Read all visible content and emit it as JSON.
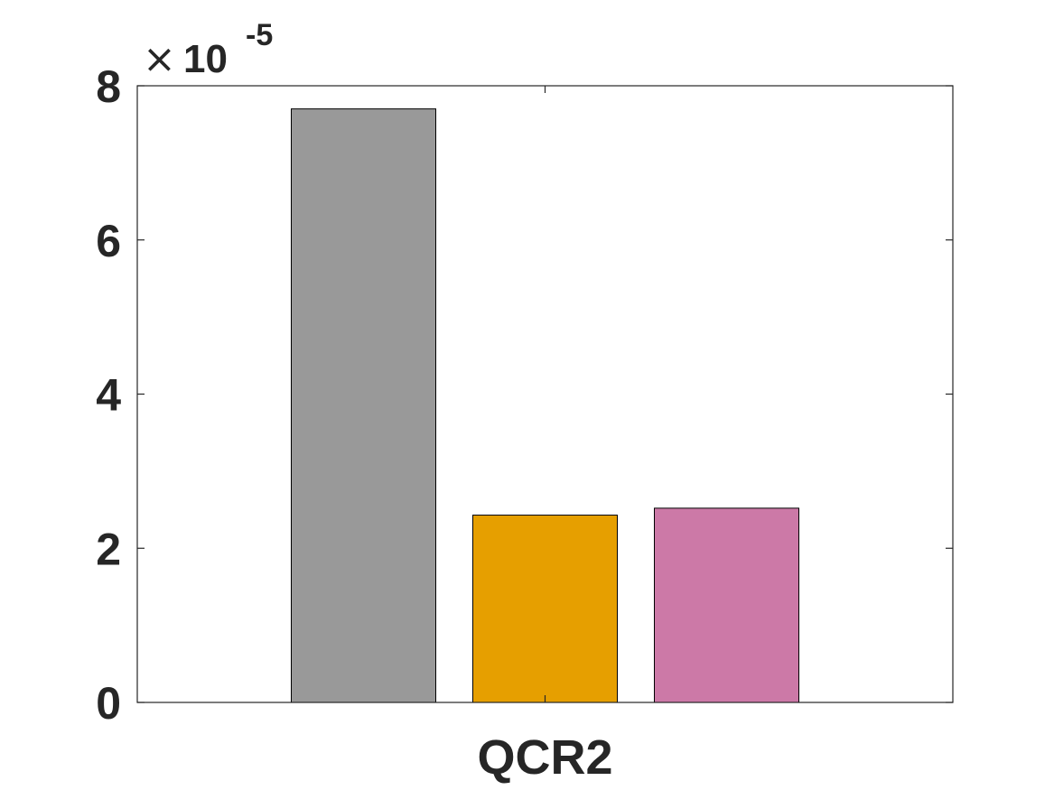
{
  "chart_data": {
    "type": "bar",
    "categories": [
      "QCR2"
    ],
    "series": [
      {
        "values": [
          7.7e-05
        ],
        "color": "#999999"
      },
      {
        "values": [
          2.43e-05
        ],
        "color": "#E69F00"
      },
      {
        "values": [
          2.52e-05
        ],
        "color": "#CC79A7"
      }
    ],
    "ylim": [
      0,
      8e-05
    ],
    "yticks": [
      0,
      2,
      4,
      6,
      8
    ],
    "ytick_labels": [
      "0",
      "2",
      "4",
      "6",
      "8"
    ],
    "y_exponent": {
      "times": "×",
      "base": "10",
      "power": "-5"
    },
    "title": "",
    "xlabel": "",
    "ylabel": "",
    "grid": false
  }
}
